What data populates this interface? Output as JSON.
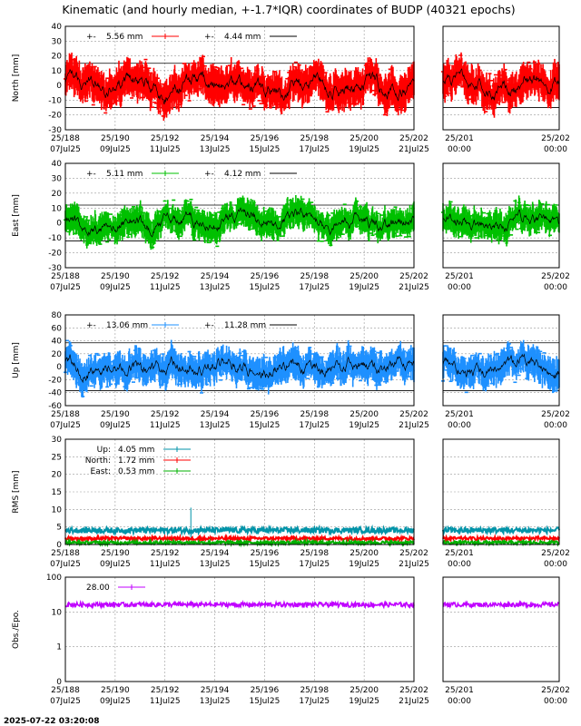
{
  "title": "Kinematic (and hourly median, +-1.7*IQR) coordinates of BUDP (40321 epochs)",
  "timestamp": "2025-07-22 03:20:08",
  "colors": {
    "north": "#ff0000",
    "east": "#00c000",
    "up": "#1e90ff",
    "rms_up": "#0093a8",
    "rms_north": "#ff0000",
    "rms_east": "#00b000",
    "obs": "#c000ff",
    "median": "#000000"
  },
  "x_ticks_left": [
    {
      "top": "25/188",
      "bottom": "07Jul25"
    },
    {
      "top": "25/190",
      "bottom": "09Jul25"
    },
    {
      "top": "25/192",
      "bottom": "11Jul25"
    },
    {
      "top": "25/194",
      "bottom": "13Jul25"
    },
    {
      "top": "25/196",
      "bottom": "15Jul25"
    },
    {
      "top": "25/198",
      "bottom": "17Jul25"
    },
    {
      "top": "25/200",
      "bottom": "19Jul25"
    },
    {
      "top": "25/202",
      "bottom": "21Jul25"
    }
  ],
  "x_ticks_right": [
    {
      "top": "25/201",
      "bottom": "00:00"
    },
    {
      "top": "25/202",
      "bottom": "00:00"
    }
  ],
  "chart_data": [
    {
      "type": "scatter",
      "ylabel": "North [mm]",
      "ylim": [
        -30,
        40
      ],
      "yticks": [
        "40",
        "30",
        "20",
        "10",
        "0",
        "-10",
        "-20",
        "-30"
      ],
      "ref_lines": [
        15,
        -15
      ],
      "legend": [
        {
          "prefix": "+-",
          "value": "5.56 mm",
          "kind": "scatter"
        },
        {
          "prefix": "+-",
          "value": "4.44 mm",
          "kind": "line"
        }
      ],
      "series_color": "north",
      "amplitude": 6,
      "spread": 9
    },
    {
      "type": "scatter",
      "ylabel": "East [mm]",
      "ylim": [
        -30,
        40
      ],
      "yticks": [
        "40",
        "30",
        "20",
        "10",
        "0",
        "-10",
        "-20",
        "-30"
      ],
      "ref_lines": [
        12,
        -12
      ],
      "legend": [
        {
          "prefix": "+-",
          "value": "5.11 mm",
          "kind": "scatter"
        },
        {
          "prefix": "+-",
          "value": "4.12 mm",
          "kind": "line"
        }
      ],
      "series_color": "east",
      "amplitude": 5,
      "spread": 7
    },
    {
      "type": "scatter",
      "ylabel": "Up [mm]",
      "ylim": [
        -60,
        80
      ],
      "yticks": [
        "80",
        "60",
        "40",
        "20",
        "0",
        "-20",
        "-40",
        "-60"
      ],
      "ref_lines": [
        37,
        -37
      ],
      "legend": [
        {
          "prefix": "+-",
          "value": "13.06 mm",
          "kind": "scatter"
        },
        {
          "prefix": "+-",
          "value": "11.28 mm",
          "kind": "line"
        }
      ],
      "series_color": "up",
      "amplitude": 12,
      "spread": 18
    },
    {
      "type": "line",
      "ylabel": "RMS [mm]",
      "ylim": [
        0,
        30
      ],
      "yticks": [
        "30",
        "25",
        "20",
        "15",
        "10",
        "5",
        "0"
      ],
      "series": [
        {
          "name": "Up:",
          "value": "4.05 mm",
          "color": "rms_up",
          "level": 4.05
        },
        {
          "name": "North:",
          "value": "1.72 mm",
          "color": "rms_north",
          "level": 1.72
        },
        {
          "name": "East:",
          "value": "0.53 mm",
          "color": "rms_east",
          "level": 0.53
        }
      ]
    },
    {
      "type": "line",
      "ylabel": "Obs./Epo.",
      "yscale": "log",
      "yticks": [
        "100",
        "10",
        "1",
        "0"
      ],
      "legend": [
        {
          "prefix": "",
          "value": "28.00",
          "kind": "scatter"
        }
      ],
      "series_color": "obs",
      "level": 28
    }
  ]
}
